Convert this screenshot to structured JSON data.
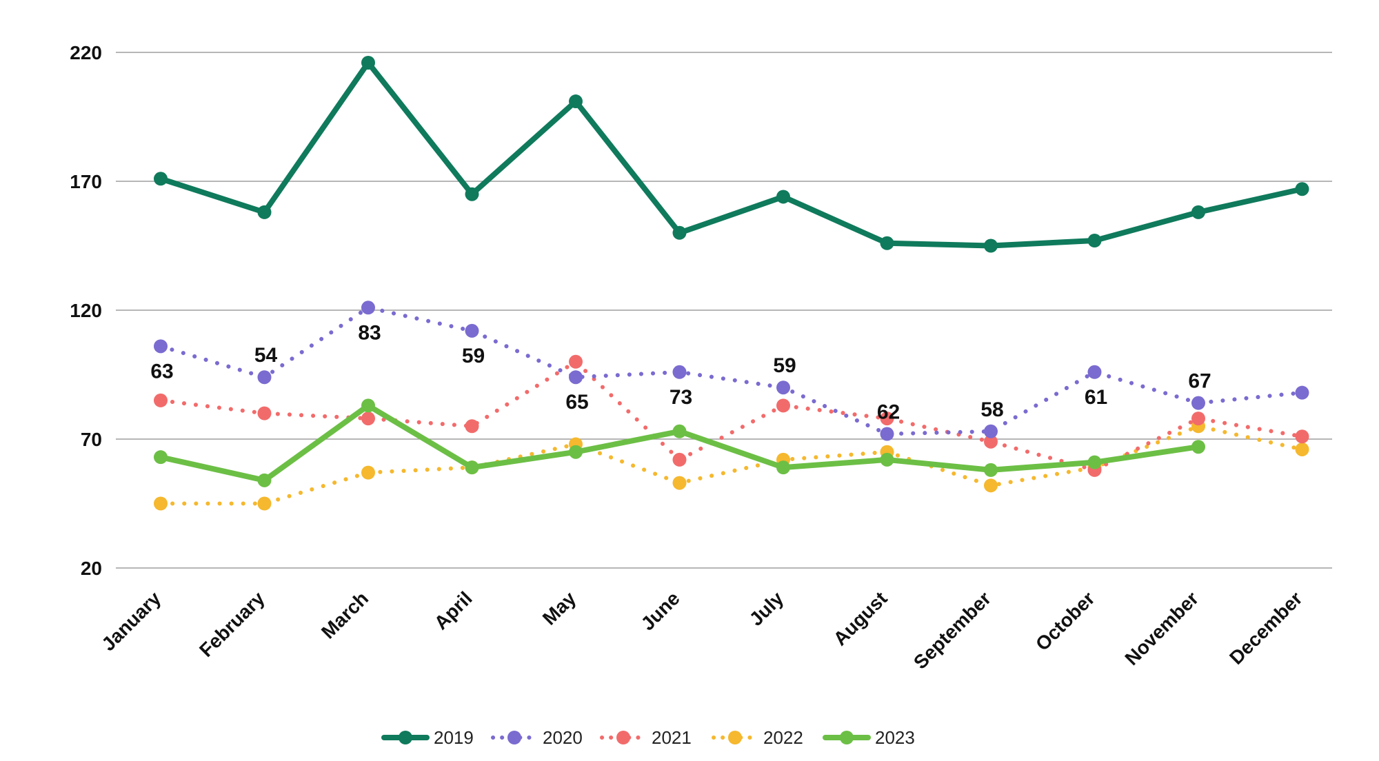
{
  "chart_data": {
    "type": "line",
    "title": "",
    "xlabel": "",
    "ylabel": "",
    "categories": [
      "January",
      "February",
      "March",
      "April",
      "May",
      "June",
      "July",
      "August",
      "September",
      "October",
      "November",
      "December"
    ],
    "ylim": [
      20,
      220
    ],
    "yticks": [
      20,
      70,
      120,
      170,
      220
    ],
    "grid": true,
    "legend_position": "bottom",
    "series": [
      {
        "name": "2019",
        "color": "#0f7a5c",
        "style": "solid",
        "values": [
          171,
          158,
          216,
          165,
          201,
          150,
          164,
          146,
          145,
          147,
          158,
          167
        ]
      },
      {
        "name": "2020",
        "color": "#7a6bd0",
        "style": "dotted",
        "values": [
          106,
          94,
          121,
          112,
          94,
          96,
          90,
          72,
          73,
          96,
          84,
          88
        ]
      },
      {
        "name": "2021",
        "color": "#f26b6b",
        "style": "dotted",
        "values": [
          85,
          80,
          78,
          75,
          100,
          62,
          83,
          78,
          69,
          58,
          78,
          71
        ]
      },
      {
        "name": "2022",
        "color": "#f5b82e",
        "style": "dotted",
        "values": [
          45,
          45,
          57,
          59,
          68,
          53,
          62,
          65,
          52,
          59,
          75,
          66
        ]
      },
      {
        "name": "2023",
        "color": "#6cbf45",
        "style": "solid",
        "values": [
          63,
          54,
          83,
          59,
          65,
          73,
          59,
          62,
          58,
          61,
          67,
          null
        ]
      }
    ],
    "data_labels": [
      {
        "category": "January",
        "text": "63"
      },
      {
        "category": "February",
        "text": "54"
      },
      {
        "category": "March",
        "text": "83"
      },
      {
        "category": "April",
        "text": "59"
      },
      {
        "category": "May",
        "text": "65"
      },
      {
        "category": "June",
        "text": "73"
      },
      {
        "category": "July",
        "text": "59"
      },
      {
        "category": "August",
        "text": "62"
      },
      {
        "category": "September",
        "text": "58"
      },
      {
        "category": "October",
        "text": "61"
      },
      {
        "category": "November",
        "text": "67"
      }
    ]
  }
}
